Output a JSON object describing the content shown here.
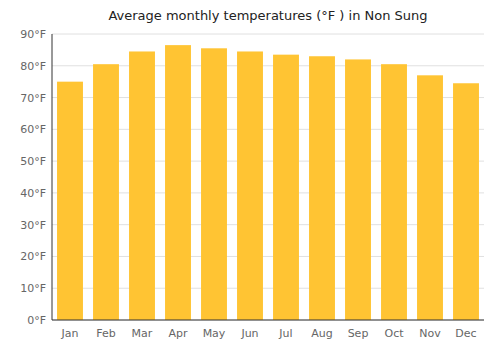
{
  "chart_data": {
    "type": "bar",
    "title": "Average monthly temperatures (°F ) in Non Sung",
    "categories": [
      "Jan",
      "Feb",
      "Mar",
      "Apr",
      "May",
      "Jun",
      "Jul",
      "Aug",
      "Sep",
      "Oct",
      "Nov",
      "Dec"
    ],
    "values": [
      75,
      80.5,
      84.5,
      86.5,
      85.5,
      84.5,
      83.5,
      83,
      82,
      80.5,
      77,
      74.5
    ],
    "color": "#FFC433",
    "ylim": [
      0,
      90
    ],
    "yticks": [
      {
        "value": 0,
        "label": "0°F"
      },
      {
        "value": 10,
        "label": "10°F"
      },
      {
        "value": 20,
        "label": "20°F"
      },
      {
        "value": 30,
        "label": "30°F"
      },
      {
        "value": 40,
        "label": "40°F"
      },
      {
        "value": 50,
        "label": "50°F"
      },
      {
        "value": 60,
        "label": "60°F"
      },
      {
        "value": 70,
        "label": "70°F"
      },
      {
        "value": 80,
        "label": "80°F"
      },
      {
        "value": 90,
        "label": "90°F"
      }
    ],
    "grid": true
  }
}
